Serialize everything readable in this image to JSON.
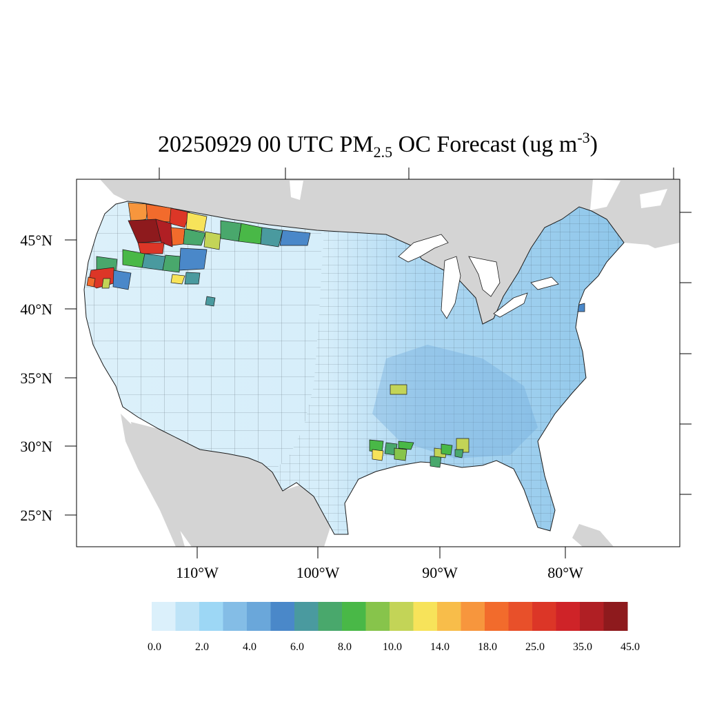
{
  "title": {
    "prefix": "20250929 00 UTC PM",
    "subscript": "2.5",
    "middle": " OC Forecast (ug m",
    "superscript": "-3",
    "suffix": ")"
  },
  "map": {
    "lat_labels": [
      "45°N",
      "40°N",
      "35°N",
      "30°N",
      "25°N"
    ],
    "lon_labels": [
      "110°W",
      "100°W",
      "90°W",
      "80°W"
    ],
    "land_color": "#d4d4d4",
    "ocean_color": "#ffffff",
    "hotspots": [
      {
        "region": "northern-idaho-montana",
        "level": "45.0+"
      },
      {
        "region": "southwest-oregon",
        "level": "35.0"
      },
      {
        "region": "east-texas-louisiana",
        "level": "10.0-14.0"
      },
      {
        "region": "mississippi-alabama",
        "level": "8.0-14.0"
      },
      {
        "region": "arkansas",
        "level": "10.0"
      }
    ]
  },
  "colorbar": {
    "colors": [
      "#dbf0fb",
      "#bde3f7",
      "#9dd7f5",
      "#84bde6",
      "#6aa7da",
      "#4a88c9",
      "#4a9a9f",
      "#49a86c",
      "#49b847",
      "#87c44b",
      "#c3d457",
      "#f7e35a",
      "#f8bd4a",
      "#f7963d",
      "#f26b2c",
      "#e8502a",
      "#dc3627",
      "#cf2328",
      "#b01f24",
      "#8e1a1d"
    ],
    "labels": [
      "0.0",
      "2.0",
      "4.0",
      "6.0",
      "8.0",
      "10.0",
      "14.0",
      "18.0",
      "25.0",
      "35.0",
      "45.0"
    ]
  }
}
